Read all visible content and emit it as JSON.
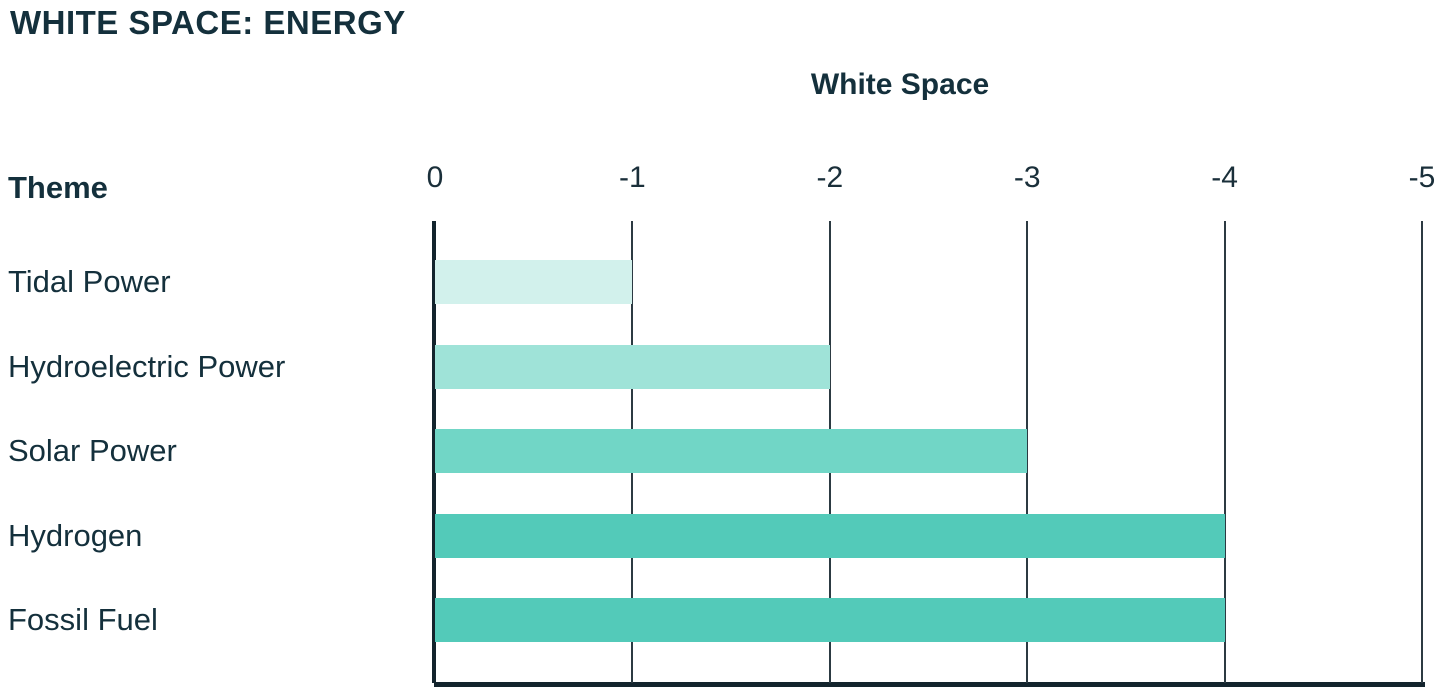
{
  "page": {
    "title": "WHITE SPACE: ENERGY"
  },
  "chart_data": {
    "type": "bar",
    "orientation": "horizontal",
    "title": "White Space",
    "xlabel": "White Space",
    "ylabel": "Theme",
    "categories": [
      "Tidal Power",
      "Hydroelectric Power",
      "Solar Power",
      "Hydrogen",
      "Fossil Fuel"
    ],
    "values": [
      -1,
      -2,
      -3,
      -4,
      -4
    ],
    "bar_colors": [
      "#d2f1ec",
      "#9fe3d8",
      "#71d6c6",
      "#53cab9",
      "#53cab9"
    ],
    "x_ticks": [
      0,
      -1,
      -2,
      -3,
      -4,
      -5
    ],
    "xlim": [
      0,
      -5
    ],
    "grid": true,
    "legend_position": "none",
    "colors": {
      "text": "#14303c",
      "axis": "#13242d",
      "gridline": "#2c3a42"
    }
  }
}
